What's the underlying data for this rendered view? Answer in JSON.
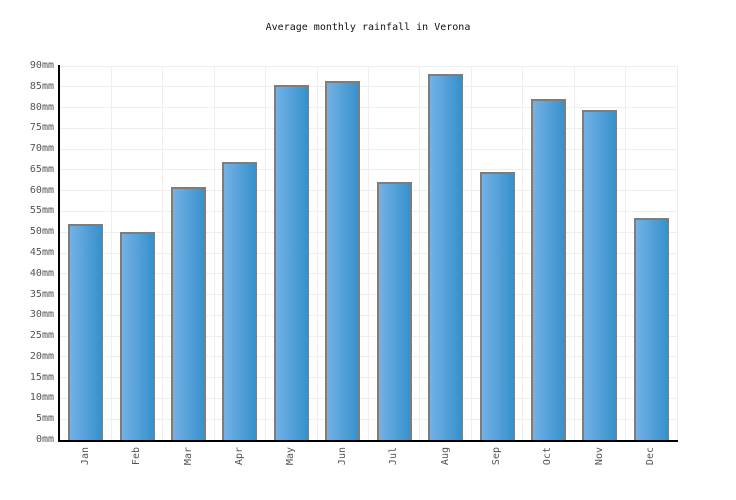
{
  "chart_data": {
    "type": "bar",
    "title": "Average monthly rainfall in Verona",
    "categories": [
      "Jan",
      "Feb",
      "Mar",
      "Apr",
      "May",
      "Jun",
      "Jul",
      "Aug",
      "Sep",
      "Oct",
      "Nov",
      "Dec"
    ],
    "values": [
      52,
      50,
      61,
      67,
      85.5,
      86.5,
      62,
      88,
      64.5,
      82,
      79.5,
      53.5
    ],
    "unit": "mm",
    "xlabel": "",
    "ylabel": "",
    "ylim": [
      0,
      90
    ],
    "ytick_step": 5,
    "ytick_labels": [
      "0mm",
      "5mm",
      "10mm",
      "15mm",
      "20mm",
      "25mm",
      "30mm",
      "35mm",
      "40mm",
      "45mm",
      "50mm",
      "55mm",
      "60mm",
      "65mm",
      "70mm",
      "75mm",
      "80mm",
      "85mm",
      "90mm"
    ],
    "grid": true,
    "legend": "none",
    "colors": {
      "bar_gradient_left": "#73b2e7",
      "bar_gradient_right": "#3791cb",
      "bar_border": "#7d7d7d",
      "gridline": "#eeeeee",
      "axis": "#000000",
      "tick_label": "#555555",
      "title": "#111111",
      "background": "#ffffff"
    }
  }
}
